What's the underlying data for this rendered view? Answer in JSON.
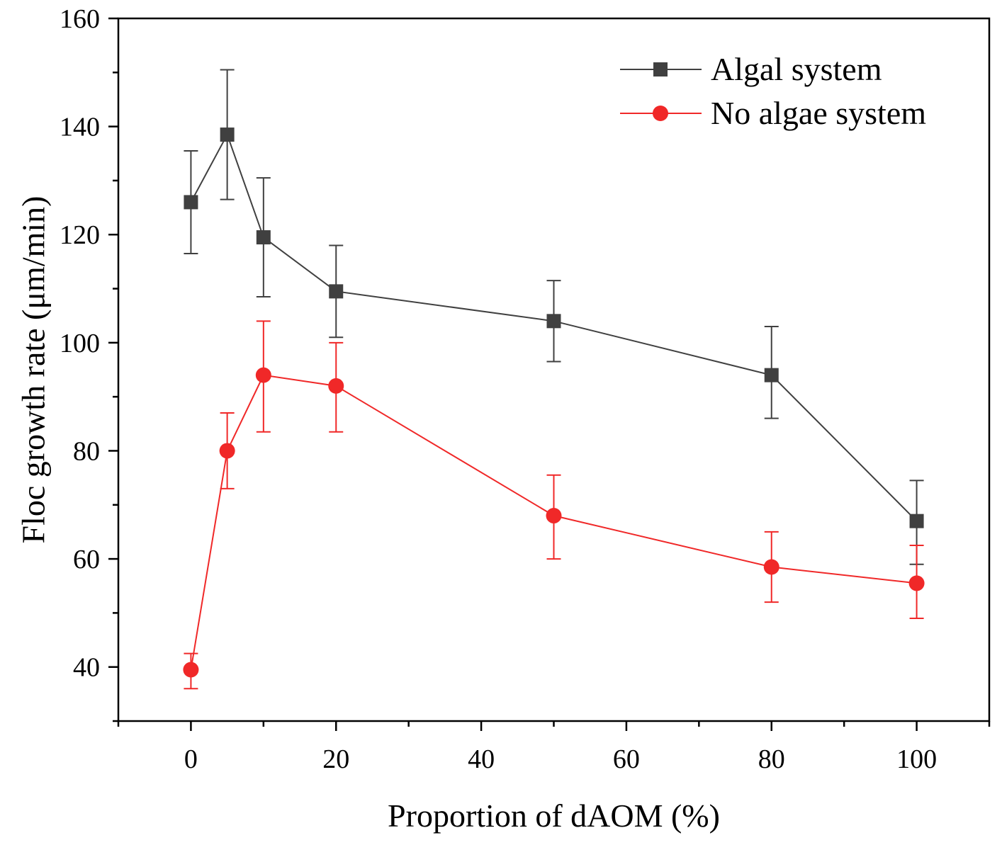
{
  "chart_data": {
    "type": "line",
    "title": "",
    "xlabel": "Proportion of dAOM (%)",
    "ylabel": "Floc growth rate (μm/min)",
    "xlim": [
      -10,
      110
    ],
    "ylim": [
      30,
      160
    ],
    "xticks": [
      0,
      20,
      40,
      60,
      80,
      100
    ],
    "xtick_labels": [
      "0",
      "20",
      "40",
      "60",
      "80",
      "100"
    ],
    "yticks": [
      40,
      60,
      80,
      100,
      120,
      140,
      160
    ],
    "ytick_labels": [
      "40",
      "60",
      "80",
      "100",
      "120",
      "140",
      "160"
    ],
    "grid": false,
    "legend_position": "top-right",
    "series": [
      {
        "name": "Algal system",
        "color": "#404040",
        "marker": "square",
        "x": [
          0,
          5,
          10,
          20,
          50,
          80,
          100
        ],
        "y": [
          126,
          138.5,
          119.5,
          109.5,
          104,
          94,
          67
        ],
        "err_upper": [
          135.5,
          150.5,
          130.5,
          118,
          111.5,
          103,
          74.5
        ],
        "err_lower": [
          116.5,
          126.5,
          108.5,
          101,
          96.5,
          86,
          59
        ]
      },
      {
        "name": "No algae system",
        "color": "#f02828",
        "marker": "circle",
        "x": [
          0,
          5,
          10,
          20,
          50,
          80,
          100
        ],
        "y": [
          39.5,
          80,
          94,
          92,
          68,
          58.5,
          55.5
        ],
        "err_upper": [
          42.5,
          87,
          104,
          100,
          75.5,
          65,
          62.5
        ],
        "err_lower": [
          36,
          73,
          83.5,
          83.5,
          60,
          52,
          49
        ]
      }
    ]
  }
}
